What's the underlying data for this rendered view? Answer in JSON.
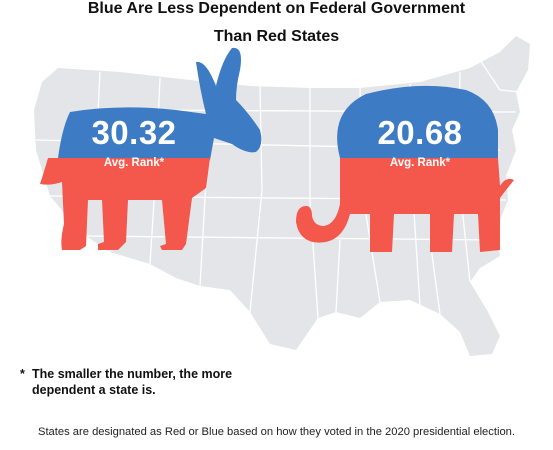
{
  "title": {
    "line1": "Blue Are Less Dependent on Federal Government",
    "line2": "Than Red States"
  },
  "democrat": {
    "value": "30.32",
    "label": "Avg. Rank*",
    "top_color": "#3d7bc4",
    "bottom_color": "#f4574b"
  },
  "republican": {
    "value": "20.68",
    "label": "Avg. Rank*",
    "top_color": "#3d7bc4",
    "bottom_color": "#f4574b"
  },
  "footnote": {
    "marker": "*",
    "line1": "The smaller the number, the more",
    "line2": "dependent a state is."
  },
  "source_note": "States are designated as Red or Blue based on how they voted in the 2020 presidential election.",
  "colors": {
    "map": "#e3e5e8",
    "map_borders": "#ffffff"
  }
}
